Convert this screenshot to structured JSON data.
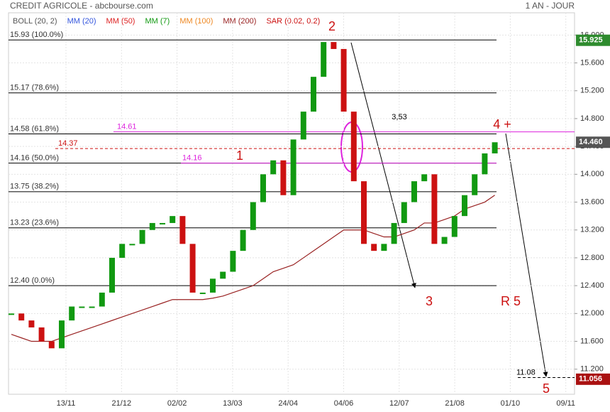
{
  "header": {
    "title": "CREDIT AGRICOLE - abcbourse.com",
    "period": "1 AN - JOUR"
  },
  "chart_data": {
    "type": "candlestick",
    "indicators": [
      {
        "label": "BOLL (20, 2)",
        "color": "#555555"
      },
      {
        "label": "MM (20)",
        "color": "#3355dd"
      },
      {
        "label": "MM (50)",
        "color": "#dd2222"
      },
      {
        "label": "MM (7)",
        "color": "#119911"
      },
      {
        "label": "MM (100)",
        "color": "#ee8822"
      },
      {
        "label": "MM (200)",
        "color": "#992222"
      },
      {
        "label": "SAR (0.02, 0.2)",
        "color": "#cc1111"
      }
    ],
    "x_labels": [
      "13/11",
      "21/12",
      "02/02",
      "13/03",
      "24/04",
      "04/06",
      "12/07",
      "21/08",
      "01/10",
      "09/11"
    ],
    "ylim": [
      10.84,
      16.32
    ],
    "yticks": [
      {
        "value": 11.2,
        "label": "11.200"
      },
      {
        "value": 11.6,
        "label": "11.600"
      },
      {
        "value": 12.0,
        "label": "12.000"
      },
      {
        "value": 12.4,
        "label": "12.400"
      },
      {
        "value": 12.8,
        "label": "12.800"
      },
      {
        "value": 13.2,
        "label": "13.200"
      },
      {
        "value": 13.6,
        "label": "13.600"
      },
      {
        "value": 14.0,
        "label": "14.000"
      },
      {
        "value": 14.4,
        "label": "14.400"
      },
      {
        "value": 14.8,
        "label": "14.800"
      },
      {
        "value": 15.2,
        "label": "15.200"
      },
      {
        "value": 15.6,
        "label": "15.600"
      },
      {
        "value": 16.0,
        "label": "16.000"
      }
    ],
    "grid": true,
    "up_color": "#119911",
    "down_color": "#cc1111",
    "closes": [
      12.0,
      11.9,
      11.8,
      11.6,
      11.5,
      11.9,
      12.1,
      12.1,
      12.1,
      12.3,
      12.8,
      13.0,
      13.0,
      13.2,
      13.3,
      13.3,
      13.4,
      13.0,
      12.3,
      12.3,
      12.5,
      12.6,
      12.9,
      13.2,
      13.6,
      14.0,
      14.2,
      13.7,
      14.5,
      14.9,
      15.4,
      15.9,
      15.8,
      14.9,
      13.9,
      13.0,
      12.9,
      13.0,
      13.3,
      13.6,
      13.9,
      14.0,
      13.0,
      13.1,
      13.4,
      13.7,
      14.0,
      14.3,
      14.46
    ],
    "mm200": {
      "color": "#992222",
      "values": [
        11.7,
        11.65,
        11.6,
        11.6,
        11.6,
        11.65,
        11.7,
        11.75,
        11.8,
        11.85,
        11.9,
        11.95,
        12.0,
        12.05,
        12.1,
        12.15,
        12.2,
        12.2,
        12.2,
        12.2,
        12.22,
        12.25,
        12.3,
        12.35,
        12.4,
        12.5,
        12.6,
        12.65,
        12.7,
        12.8,
        12.9,
        13.0,
        13.1,
        13.2,
        13.2,
        13.2,
        13.15,
        13.1,
        13.1,
        13.15,
        13.2,
        13.3,
        13.3,
        13.35,
        13.4,
        13.5,
        13.55,
        13.6,
        13.7
      ]
    },
    "levels": [
      {
        "value": 15.93,
        "label": "15.93  (100.0%)"
      },
      {
        "value": 15.17,
        "label": "15.17  (78.6%)"
      },
      {
        "value": 14.58,
        "label": "14.58  (61.8%)"
      },
      {
        "value": 14.16,
        "label": "14.16  (50.0%)"
      },
      {
        "value": 13.75,
        "label": "13.75  (38.2%)"
      },
      {
        "value": 13.23,
        "label": "13.23  (23.6%)"
      },
      {
        "value": 12.4,
        "label": "12.40  (0.0%)"
      }
    ],
    "lines": [
      {
        "value": 14.61,
        "label": "14.61",
        "color": "#dd22dd"
      },
      {
        "value": 14.16,
        "label": "14.16",
        "color": "#dd22dd"
      },
      {
        "value": 14.37,
        "label": "14.37",
        "color": "#cc1111"
      },
      {
        "value": 11.08,
        "label": "11.08",
        "color": "#000000"
      }
    ],
    "annotations": [
      {
        "text": "1",
        "color": "#cc1111"
      },
      {
        "text": "2",
        "color": "#cc1111"
      },
      {
        "text": "3",
        "color": "#cc1111"
      },
      {
        "text": "4 +",
        "color": "#cc1111"
      },
      {
        "text": "R 5",
        "color": "#cc1111"
      },
      {
        "text": "5",
        "color": "#cc1111"
      },
      {
        "text": "3,53",
        "color": "#000000"
      }
    ],
    "badges": [
      {
        "value": 15.925,
        "label": "15.925",
        "color": "#2e8b2e"
      },
      {
        "value": 14.46,
        "label": "14.460",
        "color": "#555555"
      },
      {
        "value": 11.056,
        "label": "11.056",
        "color": "#aa1111"
      }
    ]
  }
}
